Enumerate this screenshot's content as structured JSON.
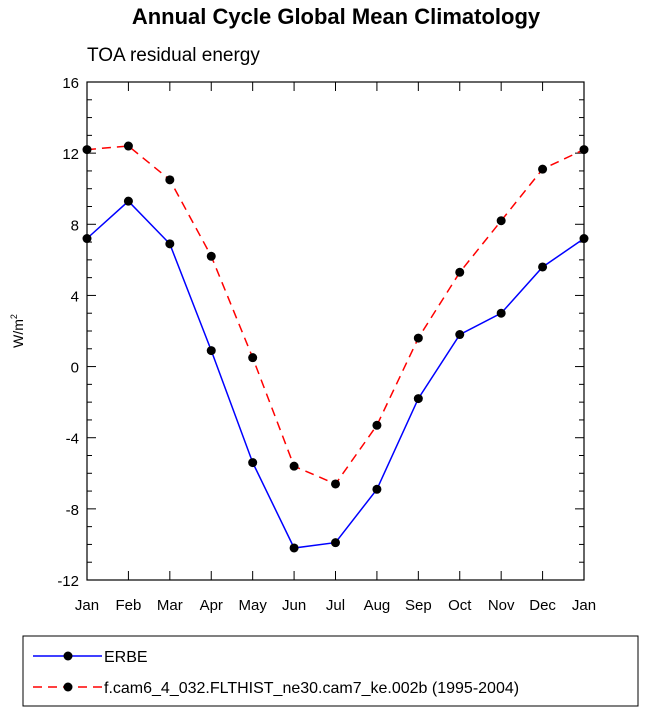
{
  "chart_data": {
    "type": "line",
    "title": "Annual Cycle Global Mean Climatology",
    "subtitle": "TOA residual energy",
    "ylabel_base": "W/m",
    "ylabel_sup": "2",
    "xlabel": "",
    "categories": [
      "Jan",
      "Feb",
      "Mar",
      "Apr",
      "May",
      "Jun",
      "Jul",
      "Aug",
      "Sep",
      "Oct",
      "Nov",
      "Dec",
      "Jan"
    ],
    "ylim": [
      -12,
      16
    ],
    "yticks": [
      "-12",
      "-8",
      "-4",
      "0",
      "4",
      "8",
      "12",
      "16"
    ],
    "series": [
      {
        "name": "ERBE",
        "color": "#0000ff",
        "dash": "solid",
        "values": [
          7.2,
          9.3,
          6.9,
          0.9,
          -5.4,
          -10.2,
          -9.9,
          -6.9,
          -1.8,
          1.8,
          3.0,
          5.6,
          7.2
        ]
      },
      {
        "name": "f.cam6_4_032.FLTHIST_ne30.cam7_ke.002b (1995-2004)",
        "color": "#ff0000",
        "dash": "dashed",
        "values": [
          12.2,
          12.4,
          10.5,
          6.2,
          0.5,
          -5.6,
          -6.6,
          -3.3,
          1.6,
          5.3,
          8.2,
          11.1,
          12.2
        ]
      }
    ],
    "legend_position": "bottom",
    "grid": false
  }
}
